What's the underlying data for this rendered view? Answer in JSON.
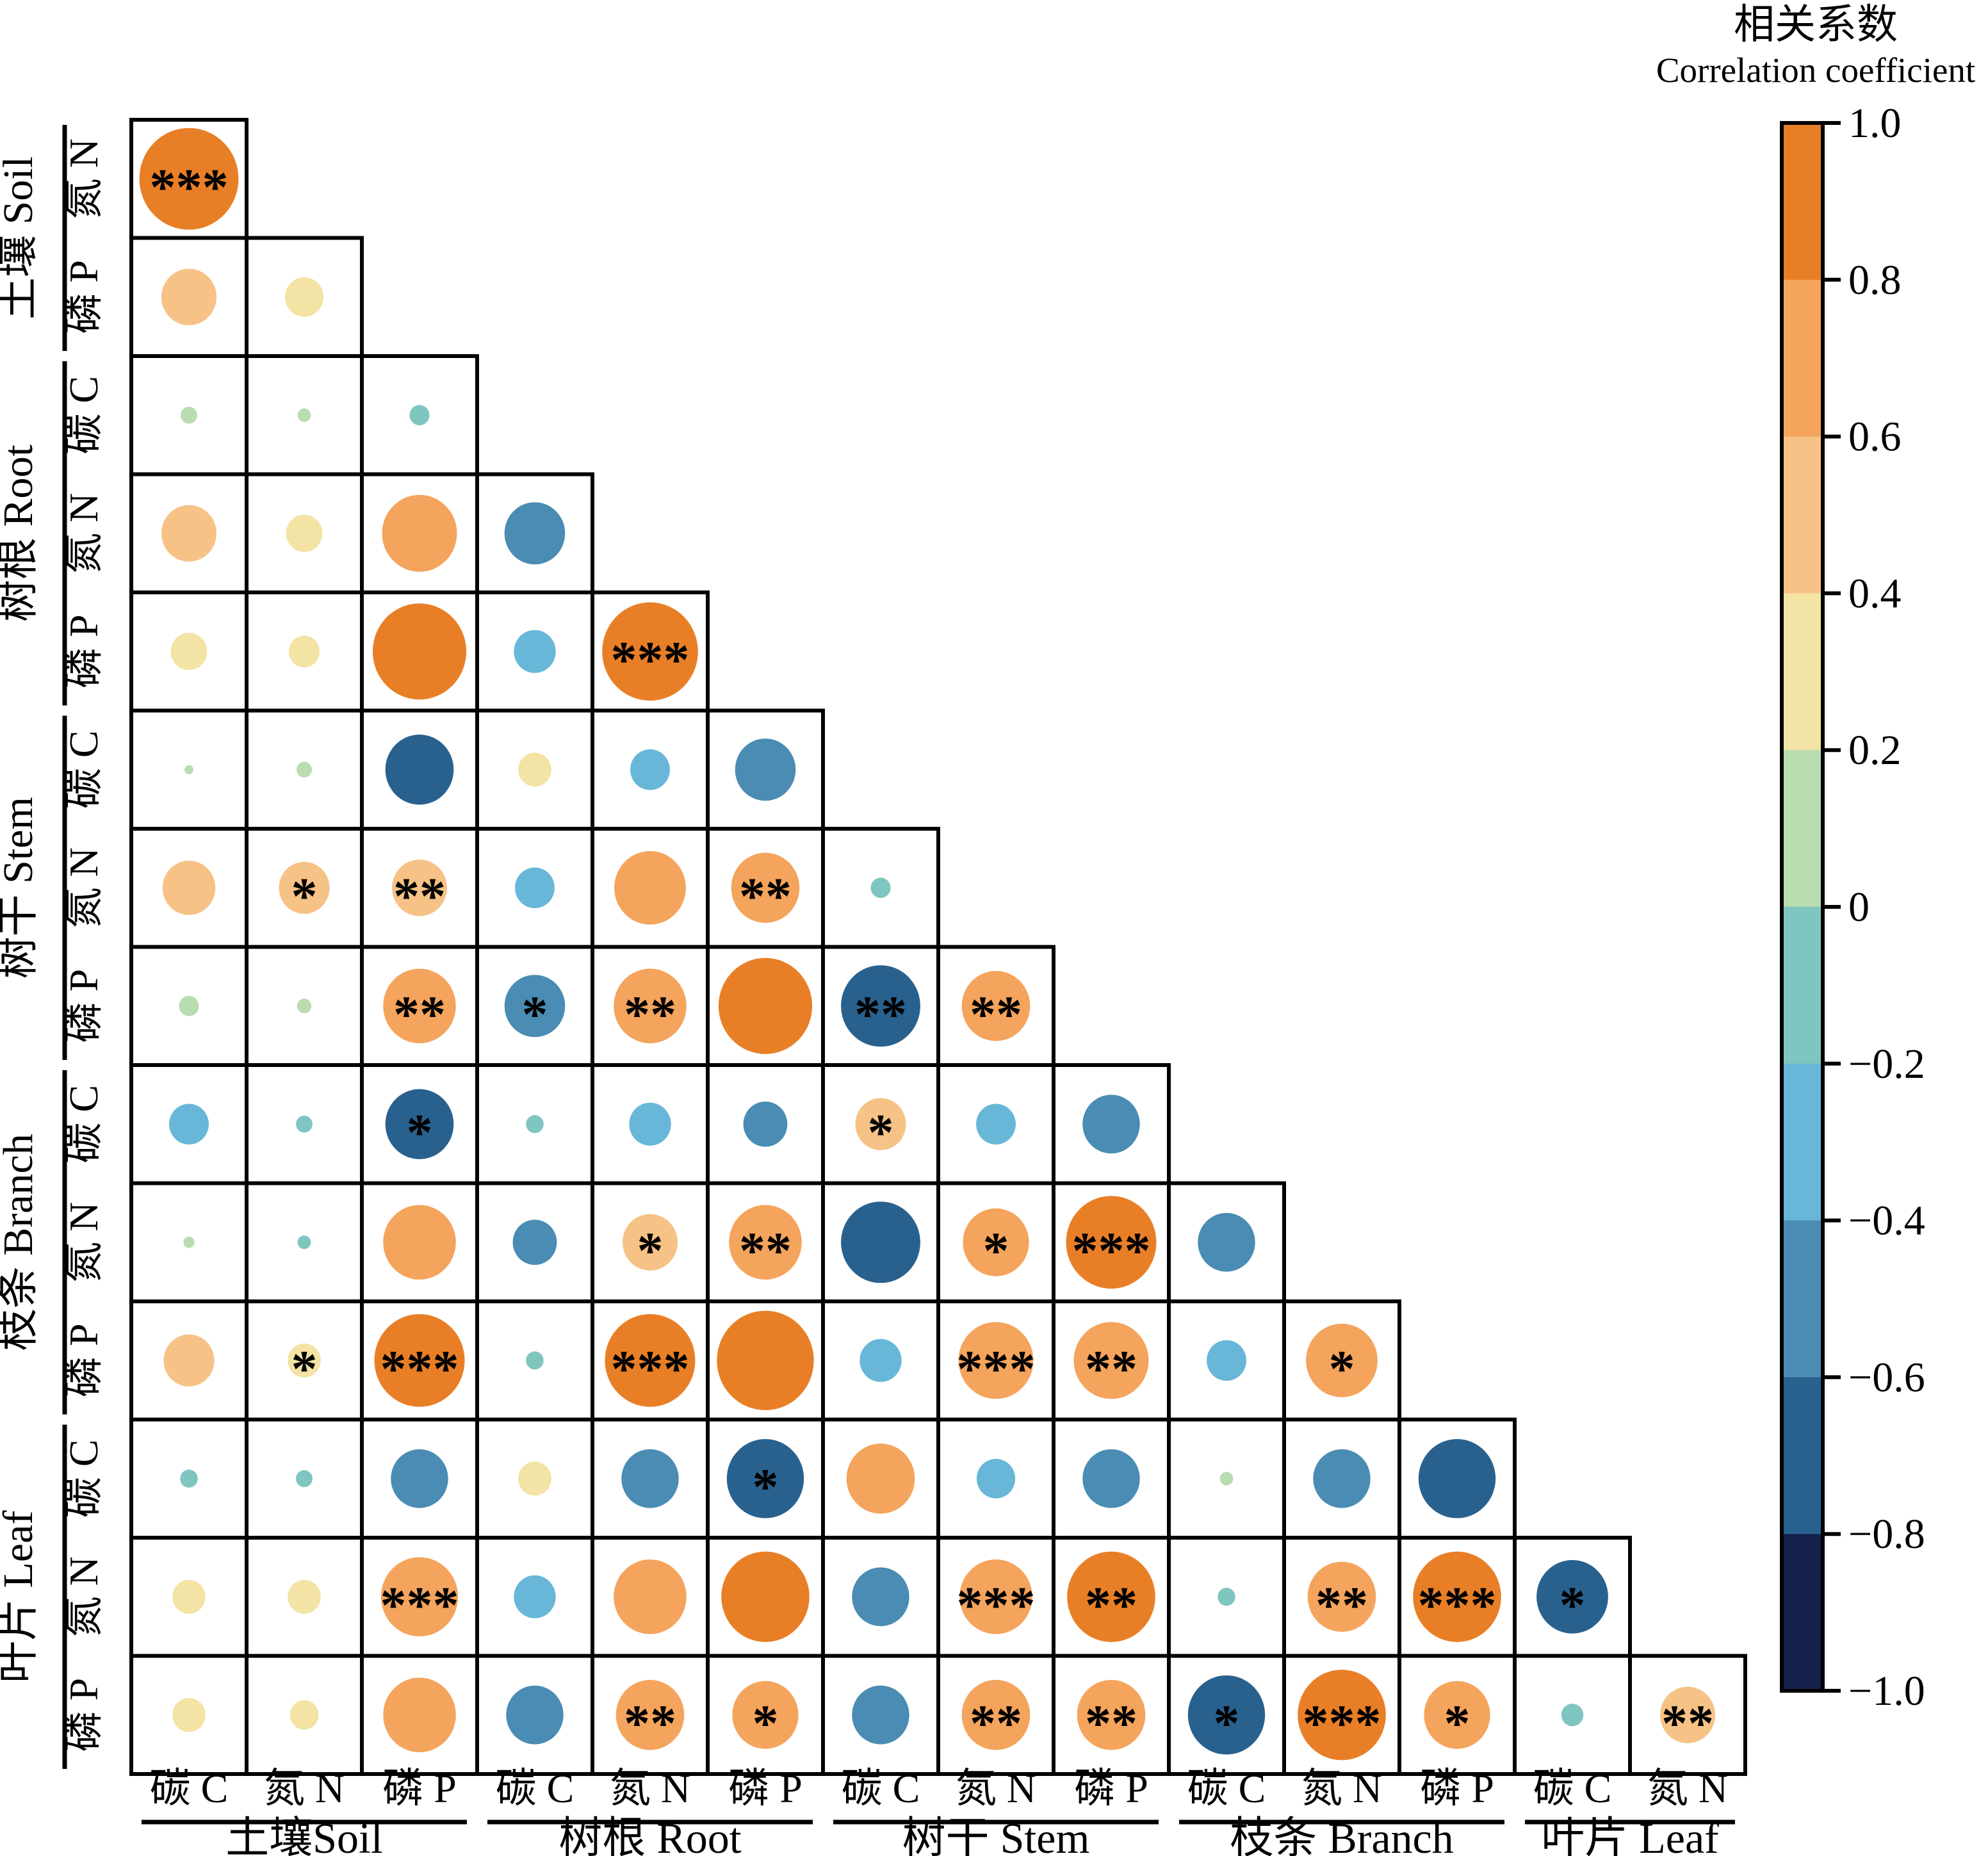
{
  "legend": {
    "title_cn": "相关系数",
    "title_en": "Correlation coefficient",
    "ticks": [
      "1.0",
      "0.8",
      "0.6",
      "0.4",
      "0.2",
      "0",
      "−0.2",
      "−0.4",
      "−0.6",
      "−0.8",
      "−1.0"
    ],
    "bin_colors_top_to_bottom": [
      "#e87f27",
      "#f4a45c",
      "#f6c286",
      "#f3e3a4",
      "#b9dcb0",
      "#7fc5c0",
      "#68b7d8",
      "#4a8cb3",
      "#29618e",
      "#15214c"
    ]
  },
  "chart_data": {
    "type": "correlation-matrix-bubble",
    "title": "相关系数 Correlation coefficient",
    "scale": {
      "min": -1,
      "max": 1,
      "bin_width": 0.2
    },
    "bubble_size_rule": "diameter proportional to |r| of cell size",
    "color_bins": {
      "breaks": [
        -1.0,
        -0.8,
        -0.6,
        -0.4,
        -0.2,
        0,
        0.2,
        0.4,
        0.6,
        0.8,
        1.0
      ],
      "colors_neg_to_pos": [
        "#15214c",
        "#29618e",
        "#4a8cb3",
        "#68b7d8",
        "#7fc5c0",
        "#b9dcb0",
        "#f3e3a4",
        "#f6c286",
        "#f4a45c",
        "#e87f27"
      ]
    },
    "variables_order": [
      "土壤 碳C",
      "土壤 氮N",
      "土壤 磷P",
      "树根 碳C",
      "树根 氮N",
      "树根 磷P",
      "树干 碳C",
      "树干 氮N",
      "树干 磷P",
      "枝条 碳C",
      "枝条 氮N",
      "枝条 磷P",
      "叶片 碳C",
      "叶片 氮N",
      "叶片 磷P"
    ],
    "row_labels": [
      "氮 N",
      "磷 P",
      "碳 C",
      "氮 N",
      "磷 P",
      "碳 C",
      "氮 N",
      "磷 P",
      "碳 C",
      "氮 N",
      "磷 P",
      "碳 C",
      "氮 N",
      "磷 P"
    ],
    "col_labels": [
      "碳 C",
      "氮 N",
      "磷 P",
      "碳 C",
      "氮 N",
      "磷 P",
      "碳 C",
      "氮 N",
      "磷 P",
      "碳 C",
      "氮 N",
      "磷 P",
      "碳 C",
      "氮 N"
    ],
    "row_groups": [
      {
        "label": "土壤 Soil",
        "span": 2
      },
      {
        "label": "树根 Root",
        "span": 3
      },
      {
        "label": "树干 Stem",
        "span": 3
      },
      {
        "label": "枝条 Branch",
        "span": 3
      },
      {
        "label": "叶片 Leaf",
        "span": 3
      }
    ],
    "col_groups": [
      {
        "label": "土壤Soil",
        "span": 3
      },
      {
        "label": "树根 Root",
        "span": 3
      },
      {
        "label": "树干 Stem",
        "span": 3
      },
      {
        "label": "枝条 Branch",
        "span": 3
      },
      {
        "label": "叶片 Leaf",
        "span": 2
      }
    ],
    "rows": [
      {
        "label": "土壤 氮N",
        "cells": [
          {
            "r": 0.9,
            "s": "***"
          }
        ]
      },
      {
        "label": "土壤 磷P",
        "cells": [
          {
            "r": 0.5,
            "s": ""
          },
          {
            "r": 0.35,
            "s": ""
          }
        ]
      },
      {
        "label": "树根 碳C",
        "cells": [
          {
            "r": 0.15,
            "s": ""
          },
          {
            "r": 0.12,
            "s": ""
          },
          {
            "r": -0.18,
            "s": ""
          }
        ]
      },
      {
        "label": "树根 氮N",
        "cells": [
          {
            "r": 0.5,
            "s": ""
          },
          {
            "r": 0.33,
            "s": ""
          },
          {
            "r": 0.68,
            "s": ""
          },
          {
            "r": -0.55,
            "s": ""
          }
        ]
      },
      {
        "label": "树根 磷P",
        "cells": [
          {
            "r": 0.33,
            "s": ""
          },
          {
            "r": 0.28,
            "s": ""
          },
          {
            "r": 0.85,
            "s": ""
          },
          {
            "r": -0.38,
            "s": ""
          },
          {
            "r": 0.87,
            "s": "***"
          }
        ]
      },
      {
        "label": "树干 碳C",
        "cells": [
          {
            "r": 0.08,
            "s": ""
          },
          {
            "r": 0.14,
            "s": ""
          },
          {
            "r": -0.62,
            "s": ""
          },
          {
            "r": 0.3,
            "s": ""
          },
          {
            "r": -0.36,
            "s": ""
          },
          {
            "r": -0.55,
            "s": ""
          }
        ]
      },
      {
        "label": "树干 氮N",
        "cells": [
          {
            "r": 0.48,
            "s": ""
          },
          {
            "r": 0.46,
            "s": "*"
          },
          {
            "r": 0.5,
            "s": "**"
          },
          {
            "r": -0.36,
            "s": ""
          },
          {
            "r": 0.65,
            "s": ""
          },
          {
            "r": 0.62,
            "s": "**"
          },
          {
            "r": -0.18,
            "s": ""
          }
        ]
      },
      {
        "label": "树干 磷P",
        "cells": [
          {
            "r": 0.18,
            "s": ""
          },
          {
            "r": 0.13,
            "s": ""
          },
          {
            "r": 0.66,
            "s": "**"
          },
          {
            "r": -0.55,
            "s": "*"
          },
          {
            "r": 0.66,
            "s": "**"
          },
          {
            "r": 0.85,
            "s": ""
          },
          {
            "r": -0.72,
            "s": "**"
          },
          {
            "r": 0.62,
            "s": "**"
          }
        ]
      },
      {
        "label": "枝条 碳C",
        "cells": [
          {
            "r": -0.36,
            "s": ""
          },
          {
            "r": -0.15,
            "s": ""
          },
          {
            "r": -0.62,
            "s": "*"
          },
          {
            "r": -0.16,
            "s": ""
          },
          {
            "r": -0.38,
            "s": ""
          },
          {
            "r": -0.4,
            "s": ""
          },
          {
            "r": 0.46,
            "s": "*"
          },
          {
            "r": -0.36,
            "s": ""
          },
          {
            "r": -0.52,
            "s": ""
          }
        ]
      },
      {
        "label": "枝条 氮N",
        "cells": [
          {
            "r": 0.1,
            "s": ""
          },
          {
            "r": -0.12,
            "s": ""
          },
          {
            "r": 0.66,
            "s": ""
          },
          {
            "r": -0.4,
            "s": ""
          },
          {
            "r": 0.5,
            "s": "*"
          },
          {
            "r": 0.66,
            "s": "**"
          },
          {
            "r": -0.72,
            "s": ""
          },
          {
            "r": 0.6,
            "s": "*"
          },
          {
            "r": 0.82,
            "s": "***"
          },
          {
            "r": -0.52,
            "s": ""
          }
        ]
      },
      {
        "label": "枝条 磷P",
        "cells": [
          {
            "r": 0.46,
            "s": ""
          },
          {
            "r": 0.3,
            "s": "*"
          },
          {
            "r": 0.82,
            "s": "***"
          },
          {
            "r": -0.16,
            "s": ""
          },
          {
            "r": 0.82,
            "s": "***"
          },
          {
            "r": 0.88,
            "s": ""
          },
          {
            "r": -0.38,
            "s": ""
          },
          {
            "r": 0.68,
            "s": "***"
          },
          {
            "r": 0.68,
            "s": "**"
          },
          {
            "r": -0.36,
            "s": ""
          },
          {
            "r": 0.65,
            "s": "*"
          }
        ]
      },
      {
        "label": "叶片 碳C",
        "cells": [
          {
            "r": -0.16,
            "s": ""
          },
          {
            "r": -0.15,
            "s": ""
          },
          {
            "r": -0.52,
            "s": ""
          },
          {
            "r": 0.3,
            "s": ""
          },
          {
            "r": -0.52,
            "s": ""
          },
          {
            "r": -0.7,
            "s": "*"
          },
          {
            "r": 0.62,
            "s": ""
          },
          {
            "r": -0.35,
            "s": ""
          },
          {
            "r": -0.52,
            "s": ""
          },
          {
            "r": 0.12,
            "s": ""
          },
          {
            "r": -0.52,
            "s": ""
          },
          {
            "r": -0.7,
            "s": ""
          }
        ]
      },
      {
        "label": "叶片 氮N",
        "cells": [
          {
            "r": 0.3,
            "s": ""
          },
          {
            "r": 0.3,
            "s": ""
          },
          {
            "r": 0.7,
            "s": "***"
          },
          {
            "r": -0.38,
            "s": ""
          },
          {
            "r": 0.66,
            "s": ""
          },
          {
            "r": 0.8,
            "s": ""
          },
          {
            "r": -0.52,
            "s": ""
          },
          {
            "r": 0.66,
            "s": "***"
          },
          {
            "r": 0.8,
            "s": "**"
          },
          {
            "r": -0.16,
            "s": ""
          },
          {
            "r": 0.62,
            "s": "**"
          },
          {
            "r": 0.8,
            "s": "***"
          },
          {
            "r": -0.65,
            "s": "*"
          }
        ]
      },
      {
        "label": "叶片 磷P",
        "cells": [
          {
            "r": 0.3,
            "s": ""
          },
          {
            "r": 0.26,
            "s": ""
          },
          {
            "r": 0.66,
            "s": ""
          },
          {
            "r": -0.52,
            "s": ""
          },
          {
            "r": 0.62,
            "s": "**"
          },
          {
            "r": 0.6,
            "s": "*"
          },
          {
            "r": -0.52,
            "s": ""
          },
          {
            "r": 0.62,
            "s": "**"
          },
          {
            "r": 0.62,
            "s": "**"
          },
          {
            "r": -0.7,
            "s": "*"
          },
          {
            "r": 0.8,
            "s": "***"
          },
          {
            "r": 0.6,
            "s": "*"
          },
          {
            "r": -0.2,
            "s": ""
          },
          {
            "r": 0.5,
            "s": "**"
          }
        ]
      }
    ]
  }
}
